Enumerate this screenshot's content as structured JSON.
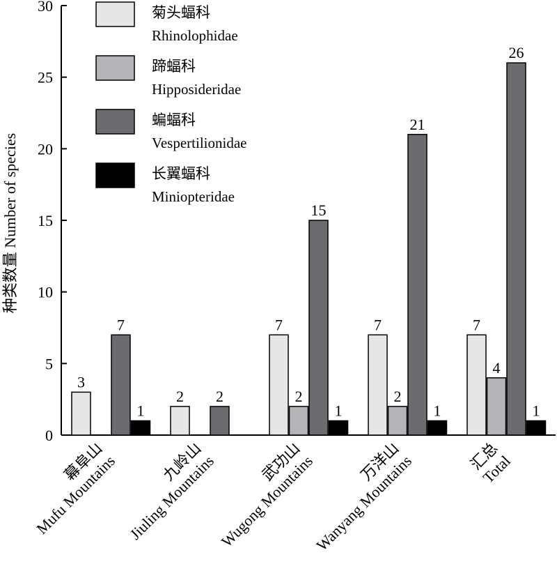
{
  "chart_data": {
    "type": "bar",
    "ylabel": "种类数量 Number of species",
    "ylim": [
      0,
      30
    ],
    "yticks": [
      0,
      5,
      10,
      15,
      20,
      25,
      30
    ],
    "categories": [
      {
        "zh": "幕阜山",
        "en": "Mufu Mountains"
      },
      {
        "zh": "九岭山",
        "en": "Jiuling Mountains"
      },
      {
        "zh": "武功山",
        "en": "Wugong Mountains"
      },
      {
        "zh": "万洋山",
        "en": "Wanyang Mountains"
      },
      {
        "zh": "汇总",
        "en": "Total"
      }
    ],
    "series": [
      {
        "name": "菊头蝠科",
        "name_en": "Rhinolophidae",
        "color": "#e6e6e6",
        "values": [
          3,
          2,
          7,
          7,
          7
        ]
      },
      {
        "name": "蹄蝠科",
        "name_en": "Hipposideridae",
        "color": "#b4b4b8",
        "values": [
          null,
          null,
          2,
          2,
          4
        ]
      },
      {
        "name": "蝙蝠科",
        "name_en": "Vespertilionidae",
        "color": "#6b6b70",
        "values": [
          7,
          2,
          15,
          21,
          26
        ]
      },
      {
        "name": "长翼蝠科",
        "name_en": "Miniopteridae",
        "color": "#000000",
        "values": [
          1,
          null,
          1,
          1,
          1
        ]
      }
    ],
    "legend_position": "top-left",
    "grid": false
  }
}
